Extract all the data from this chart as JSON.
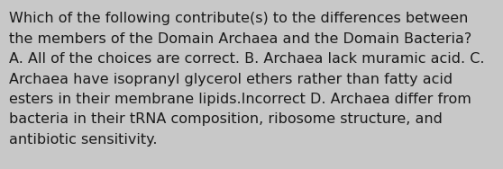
{
  "background_color": "#c8c8c8",
  "text_color": "#1a1a1a",
  "lines": [
    "Which of the following contribute(s) to the differences between",
    "the members of the Domain Archaea and the Domain Bacteria?",
    "A. All of the choices are correct. B. Archaea lack muramic acid. C.",
    "Archaea have isopranyl glycerol ethers rather than fatty acid",
    "esters in their membrane lipids.Incorrect D. Archaea differ from",
    "bacteria in their tRNA composition, ribosome structure, and",
    "antibiotic sensitivity."
  ],
  "font_size": 11.5,
  "font_family": "DejaVu Sans",
  "fig_width": 5.58,
  "fig_height": 1.88,
  "dpi": 100
}
